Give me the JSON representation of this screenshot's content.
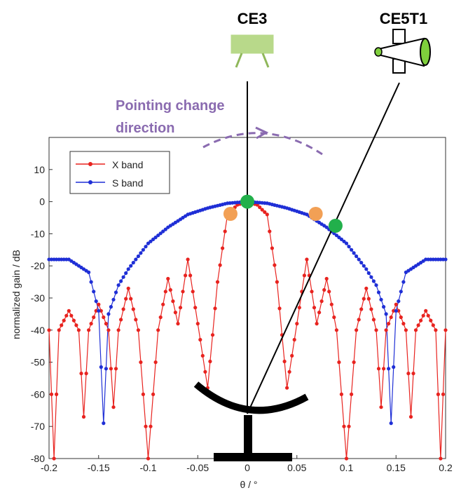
{
  "chart_data": {
    "type": "line",
    "xlabel": "θ / °",
    "ylabel": "normalized gain / dB",
    "xlim": [
      -0.2,
      0.2
    ],
    "ylim": [
      -80,
      20
    ],
    "xticks": [
      -0.2,
      -0.15,
      -0.1,
      -0.05,
      0,
      0.05,
      0.1,
      0.15,
      0.2
    ],
    "xtick_labels": [
      "-0.2",
      "-0.15",
      "-0.1",
      "-0.05",
      "0",
      "0.05",
      "0.1",
      "0.15",
      "0.2"
    ],
    "yticks": [
      10,
      0,
      -10,
      -20,
      -30,
      -40,
      -50,
      -60,
      -70,
      -80
    ],
    "ytick_labels": [
      "10",
      "0",
      "-10",
      "-20",
      "-30",
      "-40",
      "-50",
      "-60",
      "-70",
      "-80"
    ],
    "grid": false,
    "legend_position": "top-left",
    "series": [
      {
        "name": "X band",
        "color": "#e8231f",
        "marker": "dot",
        "x": [
          -0.2,
          -0.195,
          -0.19,
          -0.18,
          -0.17,
          -0.165,
          -0.16,
          -0.15,
          -0.14,
          -0.135,
          -0.13,
          -0.12,
          -0.11,
          -0.1,
          -0.09,
          -0.08,
          -0.07,
          -0.06,
          -0.05,
          -0.04,
          -0.03,
          -0.02,
          -0.01,
          0,
          0.01,
          0.02,
          0.03,
          0.04,
          0.05,
          0.06,
          0.07,
          0.08,
          0.09,
          0.1,
          0.11,
          0.12,
          0.13,
          0.135,
          0.14,
          0.15,
          0.16,
          0.165,
          0.17,
          0.18,
          0.19,
          0.195,
          0.2
        ],
        "y": [
          -40,
          -80,
          -40,
          -34,
          -40,
          -67,
          -40,
          -32,
          -40,
          -64,
          -40,
          -27,
          -40,
          -80,
          -40,
          -24,
          -38,
          -18,
          -38,
          -58,
          -25,
          -4,
          -1,
          0,
          -1,
          -4,
          -25,
          -58,
          -38,
          -18,
          -38,
          -24,
          -40,
          -80,
          -40,
          -27,
          -40,
          -64,
          -40,
          -32,
          -40,
          -67,
          -40,
          -34,
          -40,
          -80,
          -40
        ]
      },
      {
        "name": "S band",
        "color": "#1f2fd6",
        "marker": "dot",
        "x": [
          -0.2,
          -0.18,
          -0.16,
          -0.15,
          -0.145,
          -0.14,
          -0.13,
          -0.12,
          -0.1,
          -0.08,
          -0.06,
          -0.04,
          -0.02,
          0,
          0.02,
          0.04,
          0.06,
          0.08,
          0.1,
          0.12,
          0.13,
          0.14,
          0.145,
          0.15,
          0.16,
          0.18,
          0.2
        ],
        "y": [
          -18,
          -18,
          -22,
          -34,
          -69,
          -35,
          -26,
          -21,
          -13,
          -8,
          -4,
          -2,
          -0.5,
          0,
          -0.5,
          -2,
          -4,
          -8,
          -13,
          -21,
          -26,
          -35,
          -69,
          -34,
          -22,
          -18,
          -18
        ]
      }
    ],
    "annotations": {
      "title_left": "CE3",
      "title_right": "CE5T1",
      "pointing_text_line1": "Pointing change",
      "pointing_text_line2": "direction",
      "colors": {
        "pointing": "#8a6bb0",
        "green_marker": "#22b04b",
        "orange_marker": "#f2a055",
        "antenna": "#000000"
      }
    }
  }
}
